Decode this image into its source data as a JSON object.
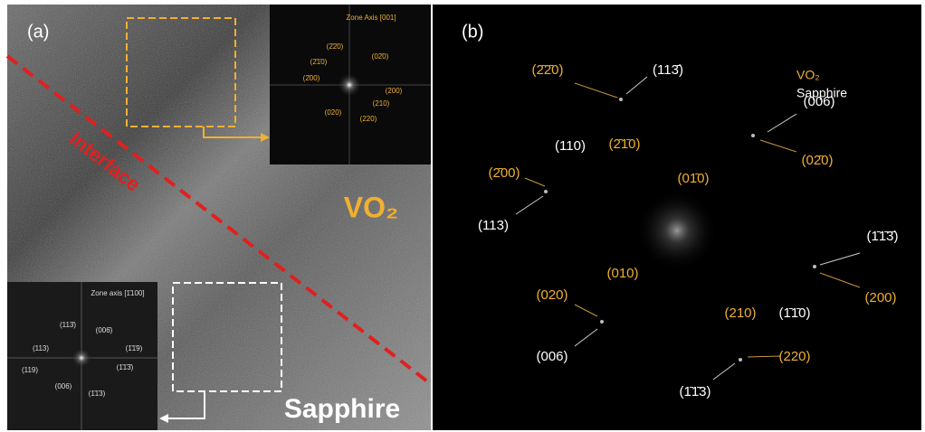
{
  "panel_a": {
    "label": "(a)",
    "interface": "Interface",
    "vo2": "VO₂",
    "sapphire": "Sapphire",
    "inset_top": {
      "title": "Zone Axis [001]",
      "spots": [
        "(2̄2̄0)",
        "(2̄1̄0)",
        "(02̄0)",
        "(2̄00)",
        "(200)",
        "(210)",
        "(020)",
        "(220)"
      ]
    },
    "inset_bottom": {
      "title": "Zone axis [1̄100]",
      "spots": [
        "(113̄)",
        "(006̄)",
        "(113)",
        "(1̄1̄9)",
        "(119)",
        "(1̄1̄3̄)",
        "(006)",
        "(1̄1̄3)"
      ]
    }
  },
  "panel_b": {
    "label": "(b)",
    "legend": [
      "VO₂",
      "Sapphire"
    ],
    "spots_vo2": [
      "(2̄2̄0)",
      "(2̄1̄0)",
      "(02̄0)",
      "(2̄00)",
      "(01̄0)",
      "(010)",
      "(200)",
      "(020)",
      "(210)",
      "(220)"
    ],
    "spots_sapphire": [
      "(113̄)",
      "(006̄)",
      "(110)",
      "(113)",
      "(1̄1̄3̄)",
      "(1̄1̄0)",
      "(006)",
      "(1̄1̄3)"
    ]
  }
}
